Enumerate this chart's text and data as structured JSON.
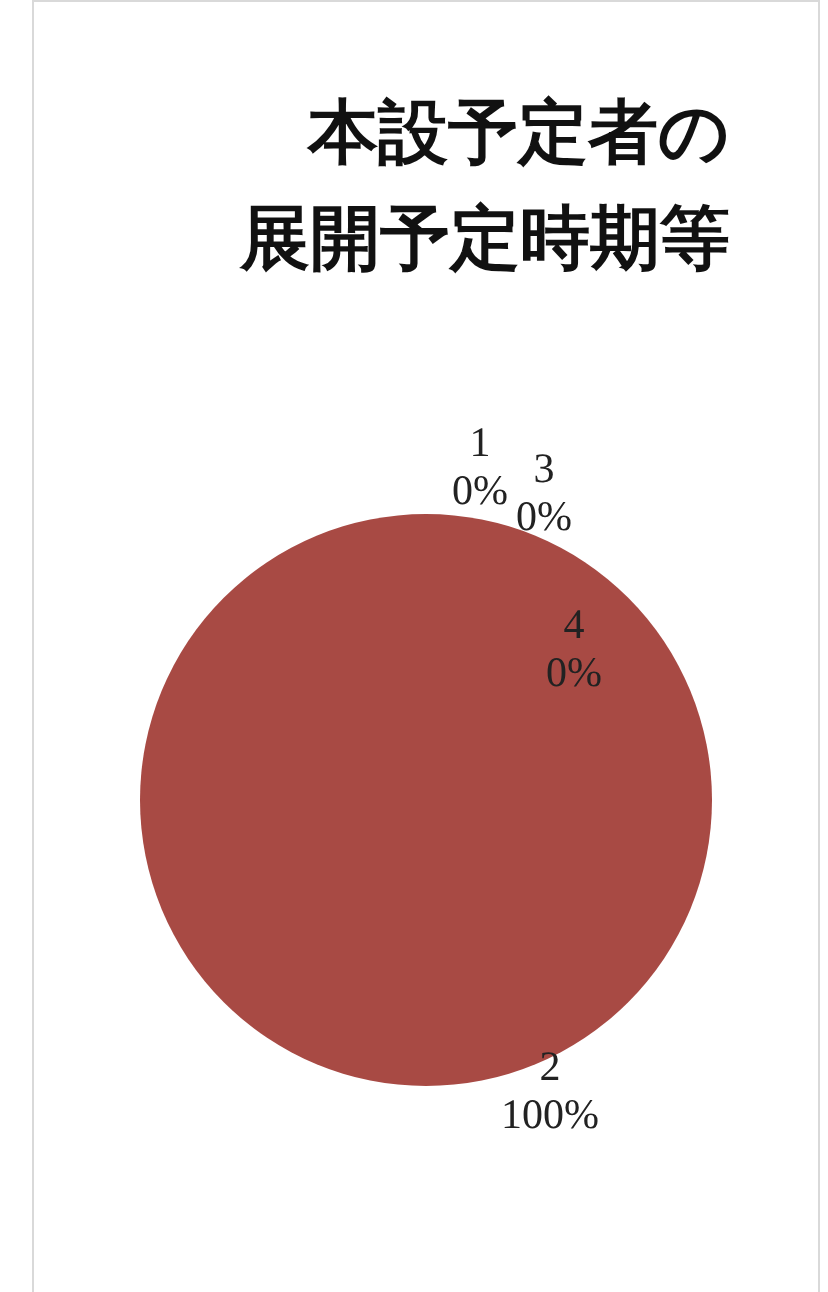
{
  "chart_data": {
    "type": "pie",
    "title": "本設予定者の展開予定時期等",
    "categories": [
      "1",
      "2",
      "3",
      "4"
    ],
    "values": [
      0,
      100,
      0,
      0
    ],
    "value_labels": [
      "0%",
      "100%",
      "0%",
      "0%"
    ],
    "colors": [
      "#4f81bd",
      "#a84a44",
      "#9bbb59",
      "#8064a2"
    ],
    "legend": false
  }
}
